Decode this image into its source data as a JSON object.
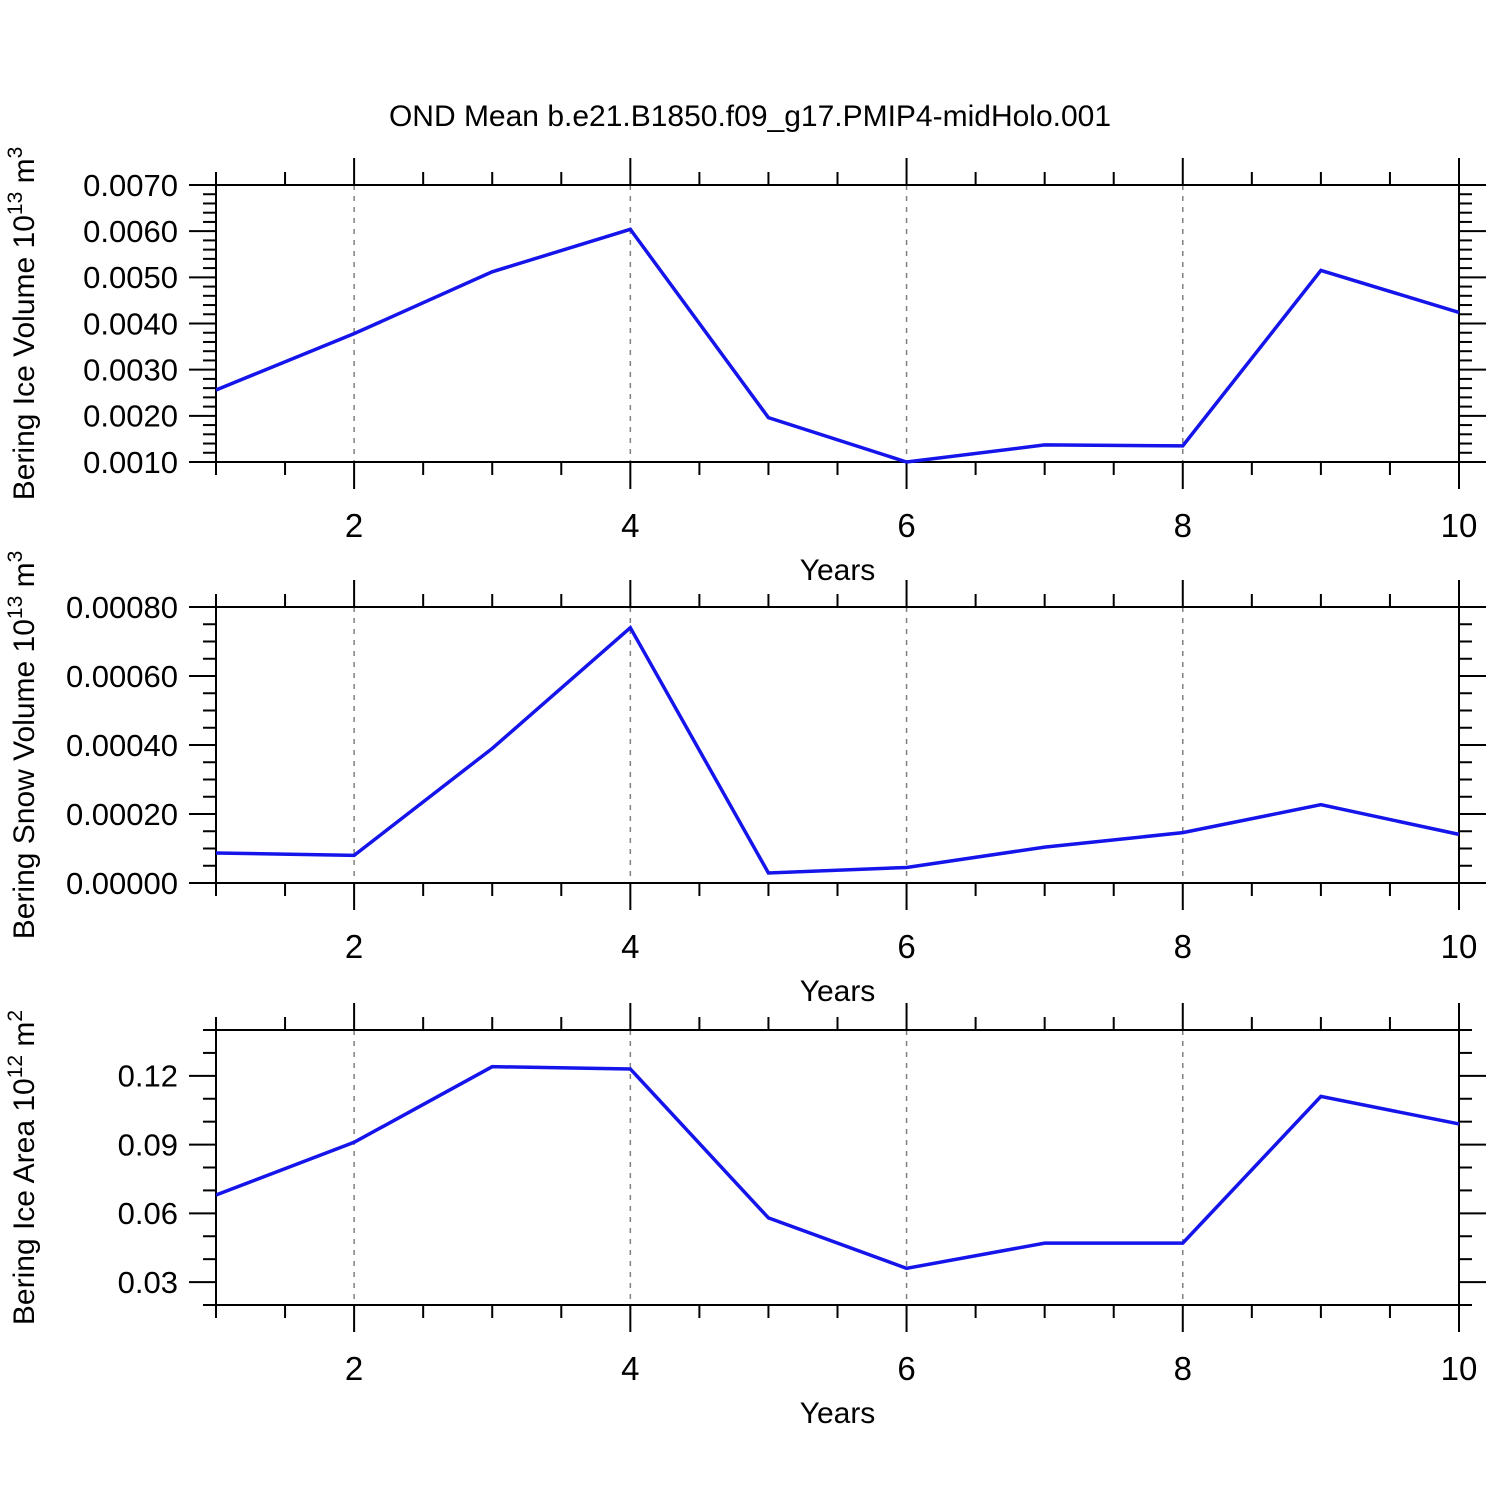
{
  "title": "OND Mean b.e21.B1850.f09_g17.PMIP4-midHolo.001",
  "xlabel": "Years",
  "colors": {
    "line": "#1414eb",
    "grid": "#808080",
    "axis": "#000000",
    "background": "#ffffff"
  },
  "chart_data": [
    {
      "type": "line",
      "ylabel": "Bering Ice Volume 10^13 m^3",
      "ylabel_parts": [
        "Bering Ice Volume 10",
        "13",
        " m",
        "3"
      ],
      "xlabel": "Years",
      "x": [
        1,
        2,
        3,
        4,
        5,
        6,
        7,
        8,
        9,
        10
      ],
      "values": [
        0.00256,
        0.00378,
        0.00512,
        0.00604,
        0.00196,
        0.001,
        0.00137,
        0.00135,
        0.00515,
        0.00424
      ],
      "ylim": [
        0.001,
        0.007
      ],
      "yticks": [
        0.001,
        0.002,
        0.003,
        0.004,
        0.005,
        0.006,
        0.007
      ],
      "ytick_labels": [
        "0.0010",
        "0.0020",
        "0.0030",
        "0.0040",
        "0.0050",
        "0.0060",
        "0.0070"
      ],
      "y_minor_step": 0.0002,
      "xlim": [
        1,
        10
      ],
      "xticks": [
        2,
        4,
        6,
        8,
        10
      ],
      "xtick_labels": [
        "2",
        "4",
        "6",
        "8",
        "10"
      ],
      "x_minor_step": 0.5,
      "grid_x": [
        2,
        4,
        6,
        8
      ],
      "grid_on": true
    },
    {
      "type": "line",
      "ylabel": "Bering Snow Volume 10^13 m^3",
      "ylabel_parts": [
        "Bering Snow Volume 10",
        "13",
        " m",
        "3"
      ],
      "xlabel": "Years",
      "x": [
        1,
        2,
        3,
        4,
        5,
        6,
        7,
        8,
        9,
        10
      ],
      "values": [
        8.7e-05,
        8e-05,
        0.00039,
        0.00074,
        2.9e-05,
        4.5e-05,
        0.000104,
        0.000146,
        0.000227,
        0.000141
      ],
      "ylim": [
        0.0,
        0.0008
      ],
      "yticks": [
        0.0,
        0.0002,
        0.0004,
        0.0006,
        0.0008
      ],
      "ytick_labels": [
        "0.00000",
        "0.00020",
        "0.00040",
        "0.00060",
        "0.00080"
      ],
      "y_minor_step": 5e-05,
      "xlim": [
        1,
        10
      ],
      "xticks": [
        2,
        4,
        6,
        8,
        10
      ],
      "xtick_labels": [
        "2",
        "4",
        "6",
        "8",
        "10"
      ],
      "x_minor_step": 0.5,
      "grid_x": [
        2,
        4,
        6,
        8
      ],
      "grid_on": true
    },
    {
      "type": "line",
      "ylabel": "Bering Ice Area 10^12 m^2",
      "ylabel_parts": [
        "Bering Ice Area 10",
        "12",
        " m",
        "2"
      ],
      "xlabel": "Years",
      "x": [
        1,
        2,
        3,
        4,
        5,
        6,
        7,
        8,
        9,
        10
      ],
      "values": [
        0.068,
        0.091,
        0.124,
        0.123,
        0.058,
        0.036,
        0.047,
        0.047,
        0.111,
        0.099
      ],
      "ylim": [
        0.02,
        0.14
      ],
      "yticks": [
        0.03,
        0.06,
        0.09,
        0.12
      ],
      "ytick_labels": [
        "0.03",
        "0.06",
        "0.09",
        "0.12"
      ],
      "y_minor_step": 0.01,
      "xlim": [
        1,
        10
      ],
      "xticks": [
        2,
        4,
        6,
        8,
        10
      ],
      "xtick_labels": [
        "2",
        "4",
        "6",
        "8",
        "10"
      ],
      "x_minor_step": 0.5,
      "grid_x": [
        2,
        4,
        6,
        8
      ],
      "grid_on": true
    }
  ]
}
